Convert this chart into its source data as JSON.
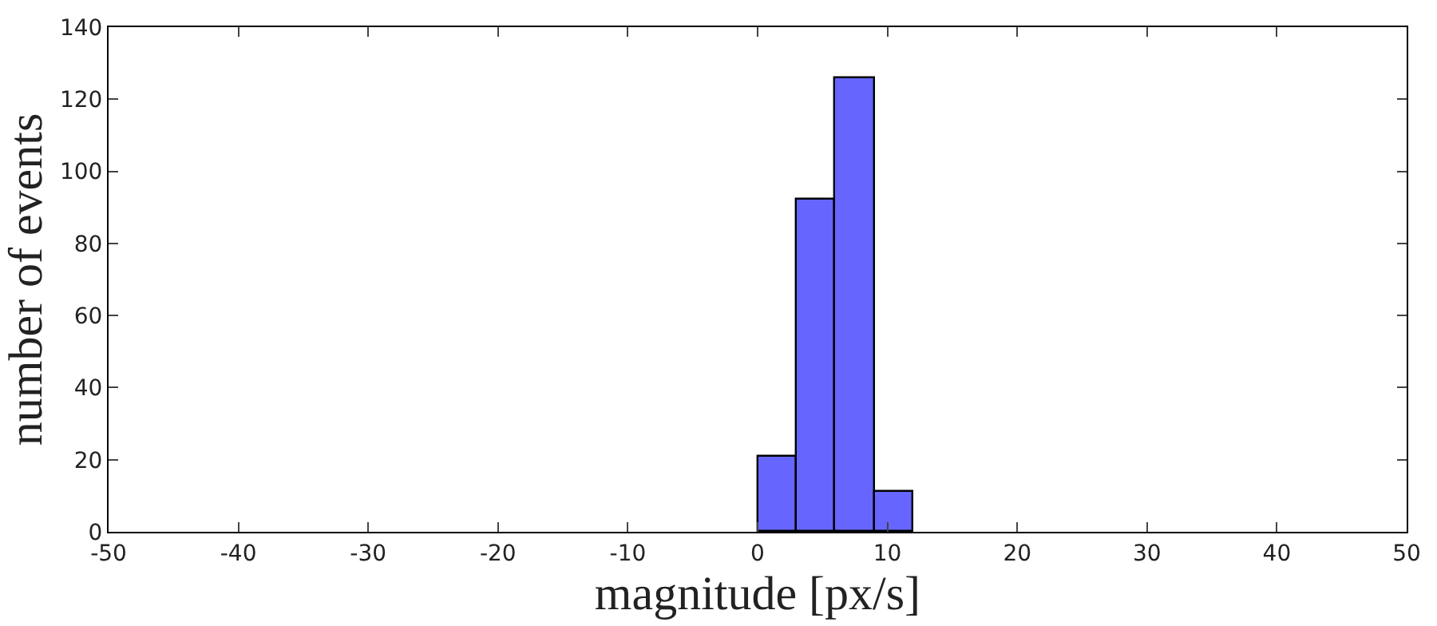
{
  "chart_data": {
    "type": "histogram",
    "xlabel": "magnitude [px/s]",
    "ylabel": "number of events",
    "bins": [
      0,
      3,
      6,
      9,
      12
    ],
    "values": [
      21,
      92,
      126,
      11
    ],
    "color": "#6666ff",
    "xlim": [
      -50,
      50
    ],
    "xticks": [
      -50,
      -40,
      -30,
      -20,
      -10,
      0,
      10,
      20,
      30,
      40,
      50
    ],
    "ylim": [
      0,
      140
    ],
    "yticks": [
      0,
      20,
      40,
      60,
      80,
      100,
      120,
      140
    ]
  }
}
